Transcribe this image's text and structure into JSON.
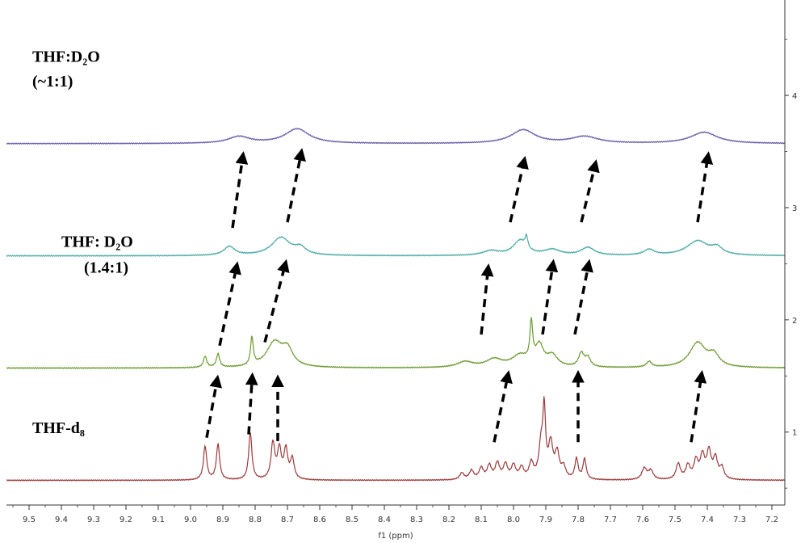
{
  "chart_data": {
    "type": "line",
    "title": "",
    "xlabel": "f1 (ppm)",
    "ylabel": "",
    "x_reversed": true,
    "xlim": [
      9.57,
      7.16
    ],
    "ylim": [
      0.35,
      4.85
    ],
    "x_ticks": [
      "9.5",
      "9.4",
      "9.3",
      "9.2",
      "9.1",
      "9.0",
      "8.9",
      "8.8",
      "8.7",
      "8.6",
      "8.5",
      "8.4",
      "8.3",
      "8.2",
      "8.1",
      "8.0",
      "7.9",
      "7.8",
      "7.7",
      "7.6",
      "7.5",
      "7.4",
      "7.3",
      "7.2"
    ],
    "x_tick_values": [
      9.5,
      9.4,
      9.3,
      9.2,
      9.1,
      9.0,
      8.9,
      8.8,
      8.7,
      8.6,
      8.5,
      8.4,
      8.3,
      8.2,
      8.1,
      8.0,
      7.9,
      7.8,
      7.7,
      7.6,
      7.5,
      7.4,
      7.3,
      7.2
    ],
    "y_ticks": [
      "1",
      "2",
      "3",
      "4"
    ],
    "y_tick_values": [
      1,
      2,
      3,
      4
    ],
    "grid": false,
    "series": [
      {
        "name": "THF-d8",
        "color": "#9b3a3a",
        "baseline": 0.57,
        "peaks": [
          [
            8.955,
            0.3,
            0.006
          ],
          [
            8.915,
            0.32,
            0.006
          ],
          [
            8.815,
            0.42,
            0.006
          ],
          [
            8.745,
            0.32,
            0.007
          ],
          [
            8.725,
            0.26,
            0.007
          ],
          [
            8.705,
            0.26,
            0.007
          ],
          [
            8.685,
            0.18,
            0.007
          ],
          [
            8.16,
            0.06,
            0.008
          ],
          [
            8.13,
            0.08,
            0.008
          ],
          [
            8.1,
            0.1,
            0.008
          ],
          [
            8.075,
            0.12,
            0.008
          ],
          [
            8.05,
            0.14,
            0.008
          ],
          [
            8.025,
            0.13,
            0.008
          ],
          [
            8.0,
            0.12,
            0.008
          ],
          [
            7.975,
            0.1,
            0.008
          ],
          [
            7.945,
            0.14,
            0.008
          ],
          [
            7.915,
            0.28,
            0.008
          ],
          [
            7.905,
            0.58,
            0.005
          ],
          [
            7.885,
            0.3,
            0.008
          ],
          [
            7.865,
            0.22,
            0.008
          ],
          [
            7.845,
            0.1,
            0.008
          ],
          [
            7.805,
            0.18,
            0.006
          ],
          [
            7.78,
            0.18,
            0.006
          ],
          [
            7.595,
            0.1,
            0.009
          ],
          [
            7.575,
            0.08,
            0.009
          ],
          [
            7.49,
            0.14,
            0.008
          ],
          [
            7.46,
            0.12,
            0.008
          ],
          [
            7.435,
            0.16,
            0.008
          ],
          [
            7.415,
            0.2,
            0.008
          ],
          [
            7.395,
            0.24,
            0.008
          ],
          [
            7.375,
            0.18,
            0.008
          ],
          [
            7.355,
            0.1,
            0.008
          ]
        ]
      },
      {
        "name": "",
        "color": "#6b9a2e",
        "baseline": 1.57,
        "peaks": [
          [
            8.955,
            0.1,
            0.006
          ],
          [
            8.915,
            0.12,
            0.006
          ],
          [
            8.81,
            0.25,
            0.005
          ],
          [
            8.74,
            0.22,
            0.03
          ],
          [
            8.7,
            0.14,
            0.02
          ],
          [
            8.15,
            0.05,
            0.03
          ],
          [
            8.06,
            0.07,
            0.03
          ],
          [
            7.98,
            0.1,
            0.03
          ],
          [
            7.945,
            0.35,
            0.005
          ],
          [
            7.92,
            0.18,
            0.015
          ],
          [
            7.88,
            0.1,
            0.02
          ],
          [
            7.79,
            0.12,
            0.01
          ],
          [
            7.77,
            0.08,
            0.01
          ],
          [
            7.58,
            0.05,
            0.01
          ],
          [
            7.43,
            0.22,
            0.03
          ],
          [
            7.38,
            0.1,
            0.02
          ]
        ]
      },
      {
        "name": "THF: D2O (1.4:1)",
        "color": "#4aaaa5",
        "baseline": 2.57,
        "peaks": [
          [
            8.88,
            0.08,
            0.02
          ],
          [
            8.72,
            0.16,
            0.035
          ],
          [
            8.66,
            0.06,
            0.02
          ],
          [
            8.07,
            0.04,
            0.03
          ],
          [
            7.98,
            0.13,
            0.025
          ],
          [
            7.96,
            0.1,
            0.005
          ],
          [
            7.88,
            0.05,
            0.03
          ],
          [
            7.77,
            0.07,
            0.025
          ],
          [
            7.58,
            0.05,
            0.02
          ],
          [
            7.43,
            0.13,
            0.04
          ],
          [
            7.37,
            0.06,
            0.02
          ]
        ]
      },
      {
        "name": "THF:D2O (~1:1)",
        "color": "#6a5aa8",
        "baseline": 3.57,
        "peaks": [
          [
            8.85,
            0.06,
            0.04
          ],
          [
            8.67,
            0.13,
            0.045
          ],
          [
            7.97,
            0.12,
            0.045
          ],
          [
            7.78,
            0.06,
            0.05
          ],
          [
            7.41,
            0.1,
            0.05
          ]
        ]
      }
    ],
    "labels": [
      {
        "text": "THF:D₂O",
        "x": 9.49,
        "y": 4.3
      },
      {
        "text": "(~1:1)",
        "x": 9.49,
        "y": 4.08
      },
      {
        "text": "THF: D₂O",
        "x": 9.4,
        "y": 2.65
      },
      {
        "text": "(1.4:1)",
        "x": 9.33,
        "y": 2.42
      },
      {
        "text": "THF-d₈",
        "x": 9.49,
        "y": 0.99
      }
    ],
    "annotations": [
      {
        "type": "dashed-arrow",
        "from": [
          8.95,
          0.95
        ],
        "to": [
          8.92,
          1.43
        ]
      },
      {
        "type": "dashed-arrow",
        "from": [
          8.82,
          0.98
        ],
        "to": [
          8.81,
          1.45
        ]
      },
      {
        "type": "dashed-arrow",
        "from": [
          8.73,
          0.92
        ],
        "to": [
          8.73,
          1.43
        ]
      },
      {
        "type": "dashed-arrow",
        "from": [
          8.06,
          0.91
        ],
        "to": [
          8.02,
          1.47
        ]
      },
      {
        "type": "dashed-arrow",
        "from": [
          7.8,
          0.91
        ],
        "to": [
          7.8,
          1.47
        ]
      },
      {
        "type": "dashed-arrow",
        "from": [
          7.45,
          0.91
        ],
        "to": [
          7.42,
          1.47
        ]
      },
      {
        "type": "dashed-arrow",
        "from": [
          8.91,
          1.77
        ],
        "to": [
          8.86,
          2.44
        ]
      },
      {
        "type": "dashed-arrow",
        "from": [
          8.77,
          1.8
        ],
        "to": [
          8.71,
          2.46
        ]
      },
      {
        "type": "dashed-arrow",
        "from": [
          8.1,
          1.87
        ],
        "to": [
          8.08,
          2.42
        ]
      },
      {
        "type": "dashed-arrow",
        "from": [
          7.91,
          1.87
        ],
        "to": [
          7.88,
          2.46
        ]
      },
      {
        "type": "dashed-arrow",
        "from": [
          7.81,
          1.87
        ],
        "to": [
          7.77,
          2.46
        ]
      },
      {
        "type": "dashed-arrow",
        "from": [
          8.87,
          2.82
        ],
        "to": [
          8.84,
          3.42
        ]
      },
      {
        "type": "dashed-arrow",
        "from": [
          8.7,
          2.87
        ],
        "to": [
          8.66,
          3.45
        ]
      },
      {
        "type": "dashed-arrow",
        "from": [
          8.01,
          2.87
        ],
        "to": [
          7.97,
          3.38
        ]
      },
      {
        "type": "dashed-arrow",
        "from": [
          7.79,
          2.87
        ],
        "to": [
          7.75,
          3.35
        ]
      },
      {
        "type": "dashed-arrow",
        "from": [
          7.43,
          2.87
        ],
        "to": [
          7.4,
          3.42
        ]
      }
    ]
  }
}
